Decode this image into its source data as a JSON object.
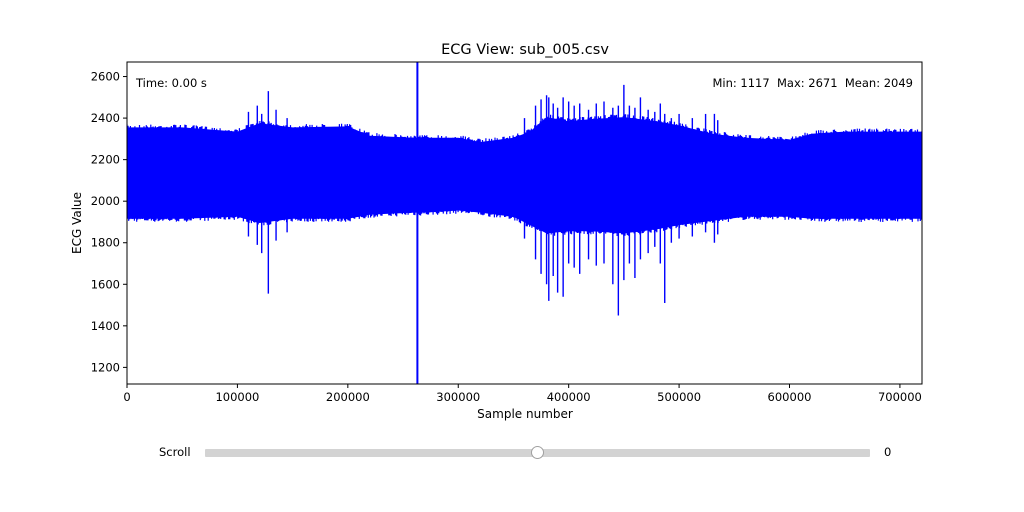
{
  "chart_data": {
    "type": "line",
    "title": "ECG View: sub_005.csv",
    "xlabel": "Sample number",
    "ylabel": "ECG Value",
    "xlim": [
      0,
      720000
    ],
    "ylim": [
      1120,
      2670
    ],
    "x_ticks": [
      0,
      100000,
      200000,
      300000,
      400000,
      500000,
      600000,
      700000
    ],
    "y_ticks": [
      1200,
      1400,
      1600,
      1800,
      2000,
      2200,
      2400,
      2600
    ],
    "grid": false,
    "color": "#0000ff",
    "envelope": {
      "x": [
        0,
        50000,
        100000,
        120000,
        150000,
        200000,
        220000,
        260000,
        270000,
        300000,
        320000,
        350000,
        365000,
        380000,
        400000,
        420000,
        450000,
        480000,
        500000,
        530000,
        560000,
        600000,
        620000,
        650000,
        700000,
        720000
      ],
      "upper": [
        2370,
        2370,
        2350,
        2390,
        2370,
        2375,
        2330,
        2320,
        2320,
        2320,
        2300,
        2320,
        2350,
        2420,
        2400,
        2410,
        2420,
        2400,
        2380,
        2340,
        2320,
        2310,
        2340,
        2350,
        2350,
        2350
      ],
      "lower": [
        1900,
        1900,
        1910,
        1880,
        1900,
        1900,
        1920,
        1930,
        1930,
        1940,
        1930,
        1910,
        1870,
        1830,
        1840,
        1840,
        1830,
        1850,
        1870,
        1890,
        1910,
        1910,
        1900,
        1900,
        1900,
        1900
      ]
    },
    "spikes": [
      {
        "x": 110000,
        "max": 2430,
        "min": 1830
      },
      {
        "x": 118000,
        "max": 2460,
        "min": 1790
      },
      {
        "x": 122000,
        "max": 2420,
        "min": 1750
      },
      {
        "x": 128000,
        "max": 2530,
        "min": 1555
      },
      {
        "x": 135000,
        "max": 2440,
        "min": 1810
      },
      {
        "x": 145000,
        "max": 2400,
        "min": 1850
      },
      {
        "x": 263000,
        "max": 2671,
        "min": 1117
      },
      {
        "x": 360000,
        "max": 2400,
        "min": 1820
      },
      {
        "x": 370000,
        "max": 2460,
        "min": 1720
      },
      {
        "x": 375000,
        "max": 2490,
        "min": 1650
      },
      {
        "x": 380000,
        "max": 2510,
        "min": 1600
      },
      {
        "x": 382000,
        "max": 2500,
        "min": 1520
      },
      {
        "x": 386000,
        "max": 2470,
        "min": 1640
      },
      {
        "x": 390000,
        "max": 2450,
        "min": 1560
      },
      {
        "x": 395000,
        "max": 2500,
        "min": 1540
      },
      {
        "x": 400000,
        "max": 2480,
        "min": 1700
      },
      {
        "x": 405000,
        "max": 2460,
        "min": 1680
      },
      {
        "x": 410000,
        "max": 2470,
        "min": 1650
      },
      {
        "x": 418000,
        "max": 2440,
        "min": 1720
      },
      {
        "x": 425000,
        "max": 2470,
        "min": 1690
      },
      {
        "x": 432000,
        "max": 2480,
        "min": 1700
      },
      {
        "x": 440000,
        "max": 2450,
        "min": 1600
      },
      {
        "x": 445000,
        "max": 2460,
        "min": 1450
      },
      {
        "x": 450000,
        "max": 2560,
        "min": 1620
      },
      {
        "x": 455000,
        "max": 2460,
        "min": 1700
      },
      {
        "x": 460000,
        "max": 2450,
        "min": 1630
      },
      {
        "x": 465000,
        "max": 2500,
        "min": 1720
      },
      {
        "x": 472000,
        "max": 2440,
        "min": 1750
      },
      {
        "x": 478000,
        "max": 2430,
        "min": 1780
      },
      {
        "x": 483000,
        "max": 2470,
        "min": 1700
      },
      {
        "x": 487000,
        "max": 2420,
        "min": 1510
      },
      {
        "x": 493000,
        "max": 2400,
        "min": 1800
      },
      {
        "x": 500000,
        "max": 2420,
        "min": 1820
      },
      {
        "x": 512000,
        "max": 2400,
        "min": 1830
      },
      {
        "x": 524000,
        "max": 2420,
        "min": 1850
      },
      {
        "x": 532000,
        "max": 2420,
        "min": 1800
      },
      {
        "x": 535000,
        "max": 2390,
        "min": 1840
      }
    ],
    "annotations": {
      "time": "Time: 0.00 s",
      "stats": "Min: 1117  Max: 2671  Mean: 2049"
    }
  },
  "slider": {
    "label": "Scroll",
    "value_text": "0",
    "position_fraction": 0.5,
    "track_color": "#d3d3d3"
  }
}
